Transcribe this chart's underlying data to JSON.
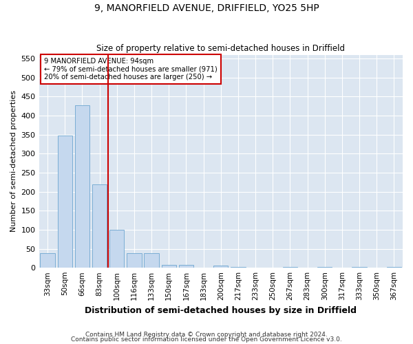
{
  "title": "9, MANORFIELD AVENUE, DRIFFIELD, YO25 5HP",
  "subtitle": "Size of property relative to semi-detached houses in Driffield",
  "xlabel": "Distribution of semi-detached houses by size in Driffield",
  "ylabel": "Number of semi-detached properties",
  "footnote1": "Contains HM Land Registry data © Crown copyright and database right 2024.",
  "footnote2": "Contains public sector information licensed under the Open Government Licence v3.0.",
  "annotation_line1": "9 MANORFIELD AVENUE: 94sqm",
  "annotation_line2": "← 79% of semi-detached houses are smaller (971)",
  "annotation_line3": "20% of semi-detached houses are larger (250) →",
  "property_size": 94,
  "bar_color": "#c5d8ee",
  "bar_edge_color": "#7aadd4",
  "marker_color": "#cc0000",
  "background_color": "#dce6f1",
  "categories": [
    "33sqm",
    "50sqm",
    "66sqm",
    "83sqm",
    "100sqm",
    "116sqm",
    "133sqm",
    "150sqm",
    "167sqm",
    "183sqm",
    "200sqm",
    "217sqm",
    "233sqm",
    "250sqm",
    "267sqm",
    "283sqm",
    "300sqm",
    "317sqm",
    "333sqm",
    "350sqm",
    "367sqm"
  ],
  "values": [
    38,
    348,
    428,
    220,
    100,
    38,
    38,
    8,
    8,
    0,
    5,
    3,
    0,
    0,
    3,
    0,
    3,
    0,
    3,
    0,
    3
  ],
  "ylim": [
    0,
    560
  ],
  "yticks": [
    0,
    50,
    100,
    150,
    200,
    250,
    300,
    350,
    400,
    450,
    500,
    550
  ],
  "property_bar_index": 4,
  "figsize": [
    6.0,
    5.0
  ],
  "dpi": 100
}
